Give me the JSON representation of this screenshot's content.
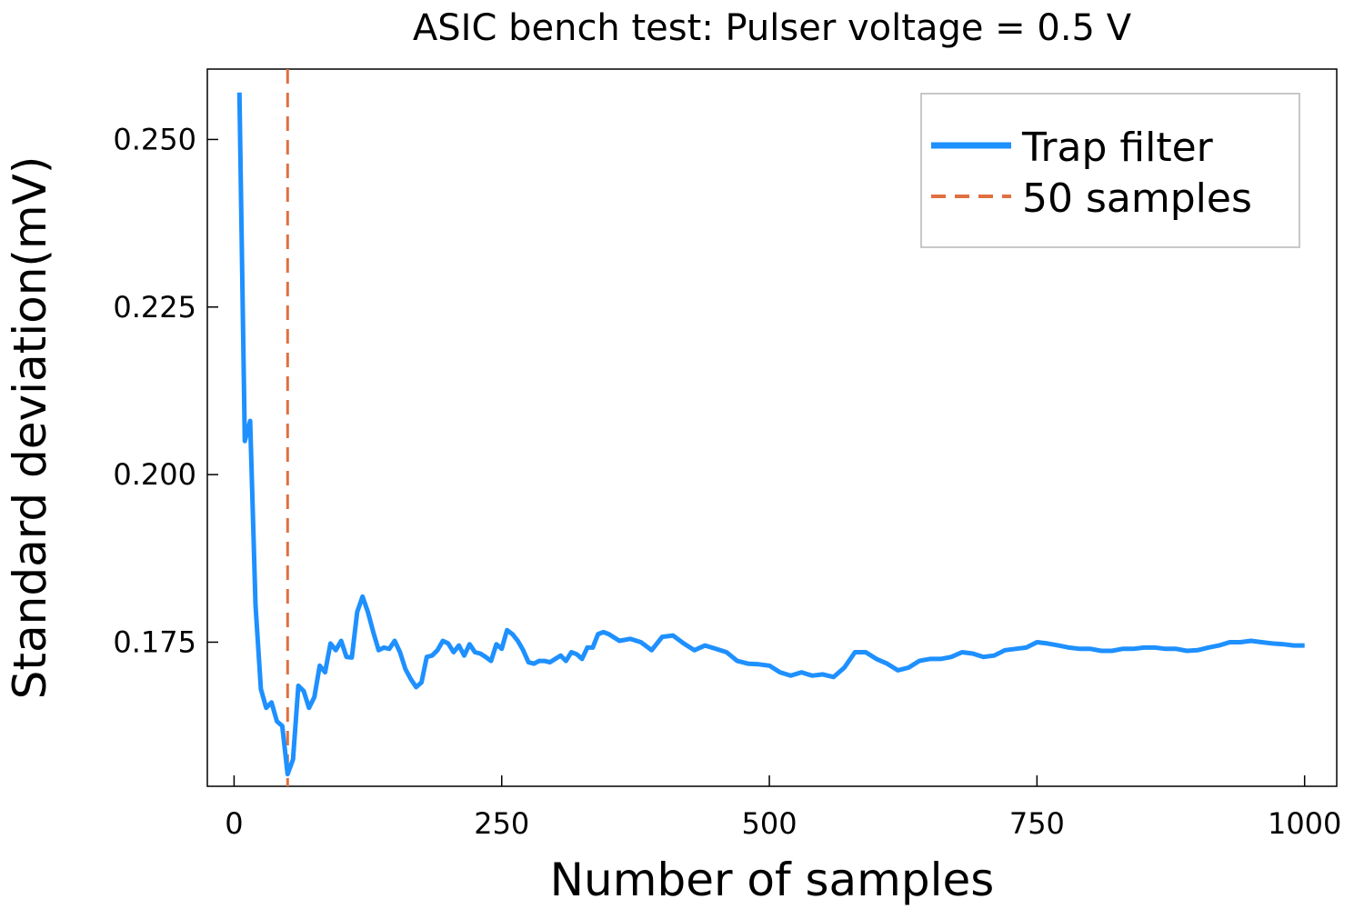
{
  "chart_data": {
    "type": "line",
    "title": "ASIC bench test: Pulser voltage = 0.5 V",
    "xlabel": "Number of samples",
    "ylabel": "Standard deviation(mV)",
    "xlim": [
      -25,
      1030
    ],
    "ylim": [
      0.1535,
      0.2605
    ],
    "xticks": [
      0,
      250,
      500,
      750,
      1000
    ],
    "xtick_labels": [
      "0",
      "250",
      "500",
      "750",
      "1000"
    ],
    "yticks": [
      0.175,
      0.2,
      0.225,
      0.25
    ],
    "ytick_labels": [
      "0.175",
      "0.200",
      "0.225",
      "0.250"
    ],
    "grid": false,
    "legend_position": "top-right",
    "colors": {
      "series": "#1e90ff",
      "vline": "#e07040"
    },
    "series": [
      {
        "name": "Trap filter",
        "x": [
          5,
          10,
          15,
          20,
          25,
          30,
          35,
          40,
          45,
          50,
          55,
          60,
          65,
          70,
          75,
          80,
          85,
          90,
          95,
          100,
          105,
          110,
          115,
          120,
          125,
          130,
          135,
          140,
          145,
          150,
          155,
          160,
          165,
          170,
          175,
          180,
          185,
          190,
          195,
          200,
          205,
          210,
          215,
          220,
          225,
          230,
          235,
          240,
          245,
          250,
          255,
          260,
          265,
          270,
          275,
          280,
          285,
          290,
          295,
          300,
          305,
          310,
          315,
          320,
          325,
          330,
          335,
          340,
          345,
          350,
          360,
          370,
          380,
          390,
          400,
          410,
          420,
          430,
          440,
          450,
          460,
          470,
          480,
          490,
          500,
          510,
          520,
          530,
          540,
          550,
          560,
          570,
          580,
          590,
          600,
          610,
          620,
          630,
          640,
          650,
          660,
          670,
          680,
          690,
          700,
          710,
          720,
          730,
          740,
          750,
          760,
          770,
          780,
          790,
          800,
          810,
          820,
          830,
          840,
          850,
          860,
          870,
          880,
          890,
          900,
          910,
          920,
          930,
          940,
          950,
          960,
          970,
          980,
          990,
          1000
        ],
        "values": [
          0.257,
          0.205,
          0.208,
          0.1805,
          0.168,
          0.1652,
          0.166,
          0.1632,
          0.1625,
          0.1553,
          0.1575,
          0.1685,
          0.1677,
          0.1652,
          0.1668,
          0.1715,
          0.1705,
          0.1748,
          0.1738,
          0.1752,
          0.1728,
          0.1727,
          0.1795,
          0.1818,
          0.1795,
          0.1765,
          0.1738,
          0.1742,
          0.174,
          0.1752,
          0.1735,
          0.171,
          0.1695,
          0.1683,
          0.169,
          0.1728,
          0.173,
          0.1738,
          0.1752,
          0.1748,
          0.1735,
          0.1745,
          0.173,
          0.1747,
          0.1735,
          0.1733,
          0.1728,
          0.1722,
          0.1747,
          0.174,
          0.1768,
          0.1762,
          0.1752,
          0.1738,
          0.172,
          0.1718,
          0.1722,
          0.1722,
          0.172,
          0.1725,
          0.173,
          0.1722,
          0.1735,
          0.1732,
          0.1725,
          0.1742,
          0.1742,
          0.1762,
          0.1765,
          0.1762,
          0.1752,
          0.1755,
          0.175,
          0.1738,
          0.1758,
          0.176,
          0.1748,
          0.1738,
          0.1745,
          0.174,
          0.1735,
          0.1722,
          0.1718,
          0.1717,
          0.1715,
          0.1705,
          0.17,
          0.1705,
          0.17,
          0.1702,
          0.1698,
          0.1712,
          0.1735,
          0.1735,
          0.1725,
          0.1718,
          0.1708,
          0.1712,
          0.1722,
          0.1725,
          0.1725,
          0.1728,
          0.1735,
          0.1733,
          0.1728,
          0.173,
          0.1738,
          0.174,
          0.1742,
          0.175,
          0.1748,
          0.1745,
          0.1742,
          0.174,
          0.174,
          0.1737,
          0.1737,
          0.174,
          0.174,
          0.1742,
          0.1742,
          0.174,
          0.174,
          0.1737,
          0.1738,
          0.1742,
          0.1745,
          0.175,
          0.175,
          0.1752,
          0.175,
          0.1748,
          0.1747,
          0.1745,
          0.1745
        ]
      },
      {
        "name": "50 samples",
        "x_constant": 50
      }
    ]
  }
}
